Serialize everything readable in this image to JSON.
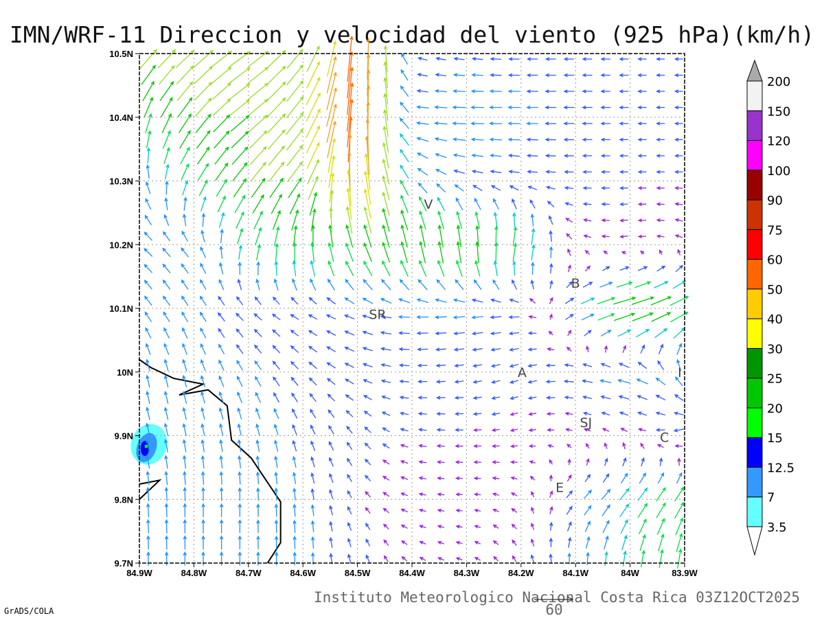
{
  "title": "IMN/WRF-11 Direccion y velocidad del viento (925 hPa)(km/h)",
  "footer": "Instituto Meteorologico Nacional Costa Rica 03Z12OCT2025",
  "credit": "GrADS/COLA",
  "reference_vector": {
    "label": "60",
    "speed": 60
  },
  "chart_data": {
    "type": "vector-field",
    "title": "IMN/WRF-11 Direccion y velocidad del viento (925 hPa)(km/h)",
    "units": "km/h",
    "xlim": [
      -84.9,
      -83.9
    ],
    "ylim": [
      9.7,
      10.5
    ],
    "x_ticks": [
      {
        "v": -84.9,
        "label": "84.9W"
      },
      {
        "v": -84.8,
        "label": "84.8W"
      },
      {
        "v": -84.7,
        "label": "84.7W"
      },
      {
        "v": -84.6,
        "label": "84.6W"
      },
      {
        "v": -84.5,
        "label": "84.5W"
      },
      {
        "v": -84.4,
        "label": "84.4W"
      },
      {
        "v": -84.3,
        "label": "84.3W"
      },
      {
        "v": -84.2,
        "label": "84.2W"
      },
      {
        "v": -84.1,
        "label": "84.1W"
      },
      {
        "v": -84.0,
        "label": "84W"
      },
      {
        "v": -83.9,
        "label": "83.9W"
      }
    ],
    "y_ticks": [
      {
        "v": 10.5,
        "label": "10.5N"
      },
      {
        "v": 10.4,
        "label": "10.4N"
      },
      {
        "v": 10.3,
        "label": "10.3N"
      },
      {
        "v": 10.2,
        "label": "10.2N"
      },
      {
        "v": 10.1,
        "label": "10.1N"
      },
      {
        "v": 10.0,
        "label": "10N"
      },
      {
        "v": 9.9,
        "label": "9.9N"
      },
      {
        "v": 9.8,
        "label": "9.8N"
      },
      {
        "v": 9.7,
        "label": "9.7N"
      }
    ],
    "grid": true,
    "wind_grid": {
      "lats": [
        10.5,
        10.4,
        10.3,
        10.2,
        10.1,
        10.0,
        9.9,
        9.8,
        9.7
      ],
      "lons": [
        -84.9,
        -84.8,
        -84.7,
        -84.6,
        -84.5,
        -84.4,
        -84.3,
        -84.2,
        -84.1,
        -84.0,
        -83.9
      ],
      "u": [
        [
          18,
          20,
          22,
          15,
          3,
          -6,
          -8,
          -8,
          -7,
          -6,
          -5
        ],
        [
          5,
          15,
          20,
          18,
          4,
          -10,
          -12,
          -10,
          -8,
          -6,
          -5
        ],
        [
          -5,
          8,
          15,
          15,
          -5,
          -8,
          -8,
          -8,
          -6,
          -5,
          -5
        ],
        [
          -7,
          -6,
          5,
          0,
          -8,
          -5,
          -2,
          5,
          -4,
          -5,
          -4
        ],
        [
          -6,
          -5,
          -6,
          -6,
          -8,
          -10,
          -10,
          -8,
          10,
          28,
          20
        ],
        [
          -2,
          -3,
          -5,
          -6,
          -7,
          -7,
          -6,
          -6,
          -8,
          -12,
          -5
        ],
        [
          -3,
          -2,
          -2,
          -3,
          -4,
          -5,
          -5,
          -4,
          -3,
          -3,
          -8
        ],
        [
          -1,
          0,
          0,
          -1,
          -3,
          -4,
          -3,
          -3,
          6,
          10,
          10
        ],
        [
          0,
          0,
          0,
          0,
          -2,
          -3,
          -3,
          -2,
          0,
          2,
          3
        ]
      ],
      "v": [
        [
          20,
          18,
          15,
          20,
          55,
          2,
          1,
          0,
          0,
          0,
          0
        ],
        [
          20,
          20,
          15,
          25,
          60,
          1,
          0,
          0,
          0,
          0,
          0
        ],
        [
          10,
          15,
          20,
          20,
          45,
          8,
          2,
          1,
          0,
          0,
          0
        ],
        [
          6,
          8,
          15,
          22,
          20,
          25,
          25,
          20,
          2,
          -1,
          2
        ],
        [
          8,
          8,
          5,
          3,
          3,
          0,
          -1,
          0,
          5,
          8,
          10
        ],
        [
          10,
          10,
          8,
          6,
          3,
          0,
          -1,
          -2,
          1,
          3,
          10
        ],
        [
          12,
          10,
          10,
          8,
          5,
          1,
          0,
          -1,
          1,
          2,
          -3
        ],
        [
          12,
          12,
          11,
          10,
          4,
          1,
          0,
          2,
          6,
          12,
          15
        ],
        [
          12,
          12,
          12,
          11,
          6,
          2,
          1,
          4,
          10,
          15,
          20
        ]
      ]
    },
    "coastline": [
      [
        [
          -84.901,
          10.02
        ],
        [
          -84.879,
          10.007
        ],
        [
          -84.837,
          9.99
        ],
        [
          -84.783,
          9.981
        ],
        [
          -84.827,
          9.964
        ],
        [
          -84.774,
          9.972
        ],
        [
          -84.739,
          9.947
        ],
        [
          -84.731,
          9.893
        ],
        [
          -84.695,
          9.865
        ],
        [
          -84.641,
          9.796
        ],
        [
          -84.641,
          9.732
        ],
        [
          -84.665,
          9.7
        ]
      ],
      [
        [
          -84.9,
          9.824
        ],
        [
          -84.863,
          9.83
        ],
        [
          -84.9,
          9.8
        ]
      ]
    ],
    "stations": [
      {
        "label": "V",
        "lon": -84.37,
        "lat": 10.264
      },
      {
        "label": "SR",
        "lon": -84.463,
        "lat": 10.091
      },
      {
        "label": "B",
        "lon": -84.1,
        "lat": 10.14
      },
      {
        "label": "A",
        "lon": -84.198,
        "lat": 10.0
      },
      {
        "label": "I",
        "lon": -83.909,
        "lat": 10.0
      },
      {
        "label": "SJ",
        "lon": -84.081,
        "lat": 9.921
      },
      {
        "label": "C",
        "lon": -83.937,
        "lat": 9.898
      },
      {
        "label": "E",
        "lon": -84.129,
        "lat": 9.819
      }
    ],
    "shaded_max": {
      "lon": -84.89,
      "lat": 9.88,
      "levels": [
        3.5,
        7,
        12.5,
        15
      ]
    },
    "colorbar": {
      "labels": [
        "3.5",
        "7",
        "12.5",
        "15",
        "20",
        "25",
        "30",
        "40",
        "50",
        "60",
        "75",
        "90",
        "100",
        "120",
        "150",
        "200"
      ],
      "colors": [
        "#66ffff",
        "#3399ff",
        "#0000ff",
        "#00ff00",
        "#00c800",
        "#009600",
        "#ffff00",
        "#ffcc00",
        "#ff6600",
        "#ff0000",
        "#cc3300",
        "#990000",
        "#ff00ff",
        "#9933cc",
        "#f2f2f2"
      ],
      "over_color": "#aaaaaa",
      "under_color": "#ffffff"
    }
  }
}
